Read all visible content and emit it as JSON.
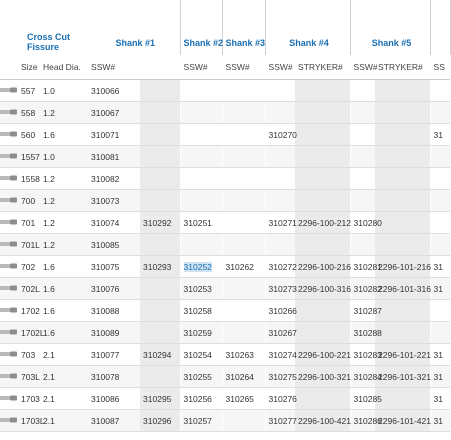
{
  "header": {
    "title": [
      "Cross Cut",
      "Fissure"
    ],
    "groups": [
      "Shank #1",
      "Shank #2",
      "Shank #3",
      "Shank #4",
      "Shank #5"
    ]
  },
  "table": {
    "columns": [
      "Size",
      "Head Dia.",
      "SSW#",
      null,
      "SSW#",
      "SSW#",
      "SSW#",
      "STRYKER#",
      "SSW#",
      "STRYKER#",
      "SS"
    ],
    "rows": [
      [
        "557",
        "1.0",
        "310066",
        null,
        null,
        null,
        null,
        null,
        null,
        null,
        null
      ],
      [
        "558",
        "1.2",
        "310067",
        null,
        null,
        null,
        null,
        null,
        null,
        null,
        null
      ],
      [
        "560",
        "1.6",
        "310071",
        null,
        null,
        null,
        "310270",
        null,
        null,
        null,
        "31"
      ],
      [
        "1557",
        "1.0",
        "310081",
        null,
        null,
        null,
        null,
        null,
        null,
        null,
        null
      ],
      [
        "1558",
        "1.2",
        "310082",
        null,
        null,
        null,
        null,
        null,
        null,
        null,
        null
      ],
      [
        "700",
        "1.2",
        "310073",
        null,
        null,
        null,
        null,
        null,
        null,
        null,
        null
      ],
      [
        "701",
        "1.2",
        "310074",
        "310292",
        "310251",
        null,
        "310271",
        "2296-100-212",
        "310280",
        null,
        null
      ],
      [
        "701L",
        "1.2",
        "310085",
        null,
        null,
        null,
        null,
        null,
        null,
        null,
        null
      ],
      [
        "702",
        "1.6",
        "310075",
        "310293",
        "310252",
        "310262",
        "310272",
        "2296-100-216",
        "310281",
        "2296-101-216",
        "31"
      ],
      [
        "702L",
        "1.6",
        "310076",
        null,
        "310253",
        null,
        "310273",
        "2296-100-316",
        "310282",
        "2296-101-316",
        "31"
      ],
      [
        "1702",
        "1.6",
        "310088",
        null,
        "310258",
        null,
        "310266",
        null,
        "310287",
        null,
        null
      ],
      [
        "1702L",
        "1.6",
        "310089",
        null,
        "310259",
        null,
        "310267",
        null,
        "310288",
        null,
        null
      ],
      [
        "703",
        "2.1",
        "310077",
        "310294",
        "310254",
        "310263",
        "310274",
        "2296-100-221",
        "310283",
        "2296-101-221",
        "31"
      ],
      [
        "703L",
        "2.1",
        "310078",
        null,
        "310255",
        "310264",
        "310275",
        "2296-100-321",
        "310284",
        "2296-101-321",
        "31"
      ],
      [
        "1703",
        "2.1",
        "310086",
        "310295",
        "310256",
        "310265",
        "310276",
        null,
        "310285",
        null,
        "31"
      ],
      [
        "1703L",
        "2.1",
        "310087",
        "310296",
        "310257",
        null,
        "310277",
        "2296-100-421",
        "310286",
        "2296-101-421",
        "31"
      ]
    ]
  }
}
